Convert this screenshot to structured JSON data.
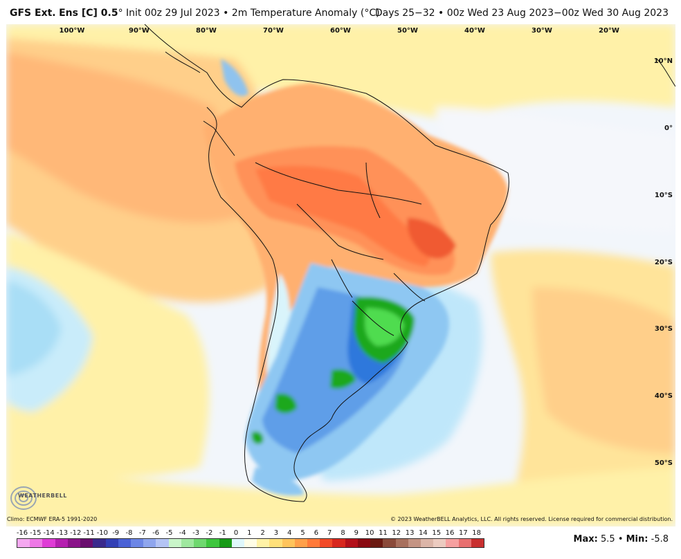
{
  "header": {
    "model": "GFS Ext.",
    "ens": "Ens [C] 0.5",
    "deg": "°",
    "init": "Init 00z 29 Jul 2023",
    "bullet": "•",
    "field": "2m Temperature Anomaly (°C)",
    "valid": "Days 25−32 • 00z Wed 23 Aug 2023−00z Wed 30 Aug 2023"
  },
  "map": {
    "lon_labels": [
      "100°W",
      "90°W",
      "80°W",
      "70°W",
      "60°W",
      "50°W",
      "40°W",
      "30°W",
      "20°W"
    ],
    "lat_labels": [
      "10°N",
      "0°",
      "10°S",
      "20°S",
      "30°S",
      "40°S",
      "50°S"
    ]
  },
  "footer": {
    "climo": "Climo: ECMWF ERA-5 1991-2020",
    "copyright": "© 2023 WeatherBELL Analytics, LLC. All rights reserved. License required for commercial distribution.",
    "logo_text": "WEATHERBELL",
    "max_label": "Max:",
    "max_value": "5.5",
    "sep": "•",
    "min_label": "Min:",
    "min_value": "-5.8"
  },
  "colorbar": {
    "ticks": [
      "-16",
      "-15",
      "-14",
      "-13",
      "-12",
      "-11",
      "-10",
      "-9",
      "-8",
      "-7",
      "-6",
      "-5",
      "-4",
      "-3",
      "-2",
      "-1",
      "0",
      "1",
      "2",
      "3",
      "4",
      "5",
      "6",
      "7",
      "8",
      "9",
      "10",
      "11",
      "12",
      "13",
      "14",
      "15",
      "16",
      "17",
      "18"
    ],
    "colors": [
      "#f5a8f0",
      "#ee78e6",
      "#df3cd6",
      "#b51fb0",
      "#8a1489",
      "#6a0e6e",
      "#3a2a8c",
      "#3340b5",
      "#4a62d6",
      "#6c86e6",
      "#8fa6ee",
      "#b4c4f4",
      "#c9f5c9",
      "#9fe89f",
      "#6fd86f",
      "#3ec63e",
      "#179a17",
      "#dff7fb",
      "#fffde6",
      "#fff2a6",
      "#ffe07a",
      "#ffc45c",
      "#ffa04a",
      "#ff7a3a",
      "#f24a28",
      "#d8271e",
      "#b3101a",
      "#8a0a12",
      "#6a1a12",
      "#8a4a3a",
      "#a8705e",
      "#c49484",
      "#dcb5a8",
      "#eccbc0",
      "#f6a0a0",
      "#e87070",
      "#c83030"
    ]
  }
}
